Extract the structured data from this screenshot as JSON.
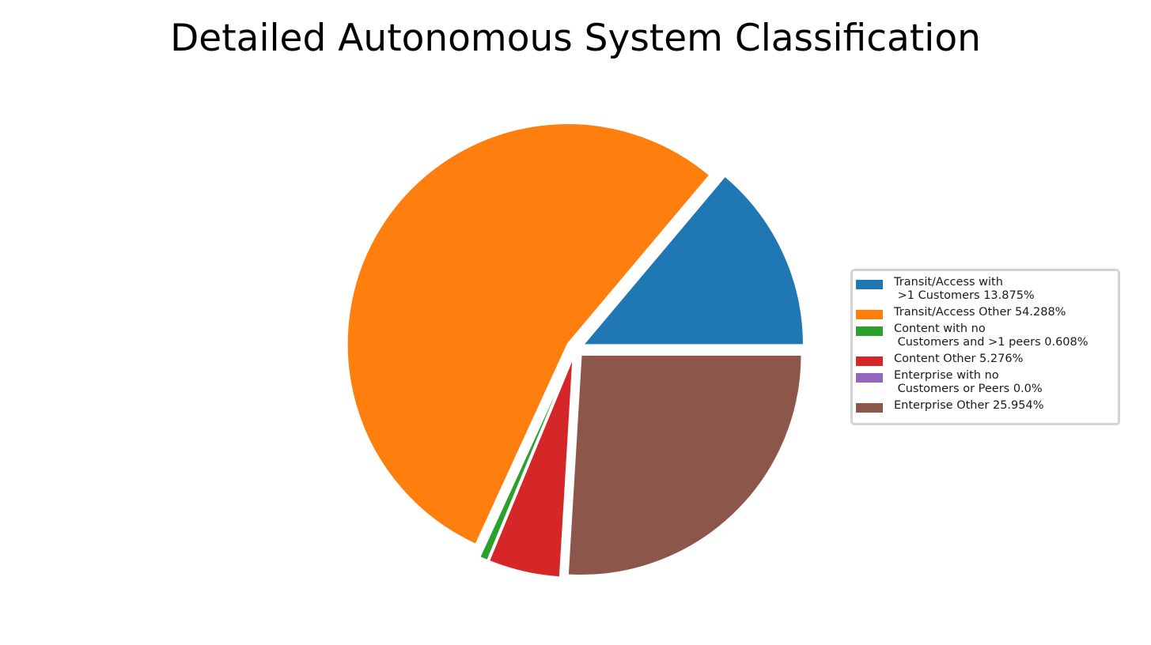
{
  "chart_data": {
    "type": "pie",
    "title": "Detailed Autonomous System Classification",
    "slices": [
      {
        "label": "Transit/Access with\n >1 Customers 13.875%",
        "value": 13.875,
        "color": "#1f77b4"
      },
      {
        "label": "Transit/Access Other 54.288%",
        "value": 54.288,
        "color": "#ff7f0e"
      },
      {
        "label": "Content with no\n Customers and >1 peers 0.608%",
        "value": 0.608,
        "color": "#2ca02c"
      },
      {
        "label": "Content Other 5.276%",
        "value": 5.276,
        "color": "#d62728"
      },
      {
        "label": "Enterprise with no\n Customers or Peers 0.0%",
        "value": 0.0,
        "color": "#9467bd"
      },
      {
        "label": "Enterprise Other 25.954%",
        "value": 25.954,
        "color": "#8c564b"
      }
    ],
    "start_angle_deg": 0,
    "direction": "counterclockwise",
    "exploded": true,
    "legend_position": "right"
  }
}
